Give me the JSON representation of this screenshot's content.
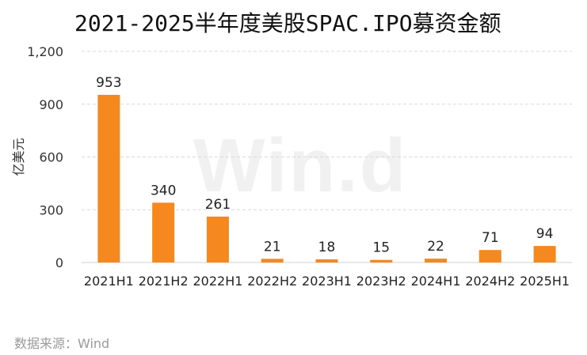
{
  "title": "2021-2025半年度美股SPAC.IPO募资金额",
  "source": "数据来源：Wind",
  "watermark": "Win.d",
  "chart_data": {
    "type": "bar",
    "title": "2021-2025半年度美股SPAC.IPO募资金额",
    "ylabel": "亿美元",
    "xlabel": "",
    "categories": [
      "2021H1",
      "2021H2",
      "2022H1",
      "2022H2",
      "2023H1",
      "2023H2",
      "2024H1",
      "2024H2",
      "2025H1"
    ],
    "values": [
      953,
      340,
      261,
      21,
      18,
      15,
      22,
      71,
      94
    ],
    "data_labels": [
      "953",
      "340",
      "261",
      "21",
      "18",
      "15",
      "22",
      "71",
      "94"
    ],
    "ylim": [
      0,
      1200
    ],
    "yticks": [
      0,
      300,
      600,
      900,
      1200
    ],
    "ytick_labels": [
      "0",
      "300",
      "600",
      "900",
      "1,200"
    ],
    "grid": true,
    "legend": "none",
    "bar_color": "#F5891F",
    "grid_color": "#D9D9D9"
  }
}
